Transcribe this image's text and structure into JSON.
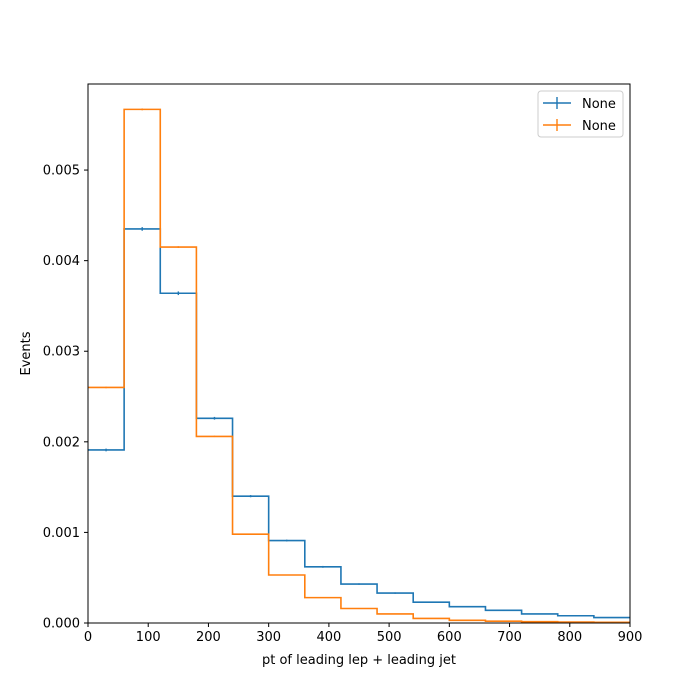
{
  "chart_data": {
    "type": "histogram-step",
    "xlabel": "pt of leading lep + leading jet",
    "ylabel": "Events",
    "xlim": [
      0,
      900
    ],
    "ylim": [
      0,
      0.00595
    ],
    "bin_edges": [
      0,
      60,
      120,
      180,
      240,
      300,
      360,
      420,
      480,
      540,
      600,
      660,
      720,
      780,
      840,
      900
    ],
    "x_ticks": [
      0,
      100,
      200,
      300,
      400,
      500,
      600,
      700,
      800,
      900
    ],
    "x_tick_labels": [
      "0",
      "100",
      "200",
      "300",
      "400",
      "500",
      "600",
      "700",
      "800",
      "900"
    ],
    "y_ticks": [
      0,
      0.001,
      0.002,
      0.003,
      0.004,
      0.005
    ],
    "y_tick_labels": [
      "0.000",
      "0.001",
      "0.002",
      "0.003",
      "0.004",
      "0.005"
    ],
    "legend_position": "upper-right",
    "series": [
      {
        "name": "None",
        "color": "#1f77b4",
        "values": [
          0.00191,
          0.00435,
          0.00364,
          0.00226,
          0.0014,
          0.00091,
          0.00062,
          0.00043,
          0.00033,
          0.00023,
          0.00018,
          0.00014,
          0.0001,
          8e-05,
          6e-05
        ],
        "errors": [
          1.5e-05,
          2e-05,
          2e-05,
          1.5e-05,
          1.2e-05,
          1e-05,
          1e-05,
          8e-06,
          8e-06,
          7e-06,
          6e-06,
          6e-06,
          5e-06,
          5e-06,
          4e-06
        ]
      },
      {
        "name": "None",
        "color": "#ff7f0e",
        "values": [
          0.0026,
          0.00567,
          0.00415,
          0.00206,
          0.00098,
          0.00053,
          0.00028,
          0.00016,
          0.0001,
          5e-05,
          3e-05,
          2e-05,
          1.5e-05,
          1e-05,
          8e-06
        ],
        "errors": [
          8e-06,
          1e-05,
          9e-06,
          7e-06,
          5e-06,
          4e-06,
          3e-06,
          2e-06,
          2e-06,
          2e-06,
          1e-06,
          1e-06,
          1e-06,
          1e-06,
          1e-06
        ]
      }
    ]
  }
}
